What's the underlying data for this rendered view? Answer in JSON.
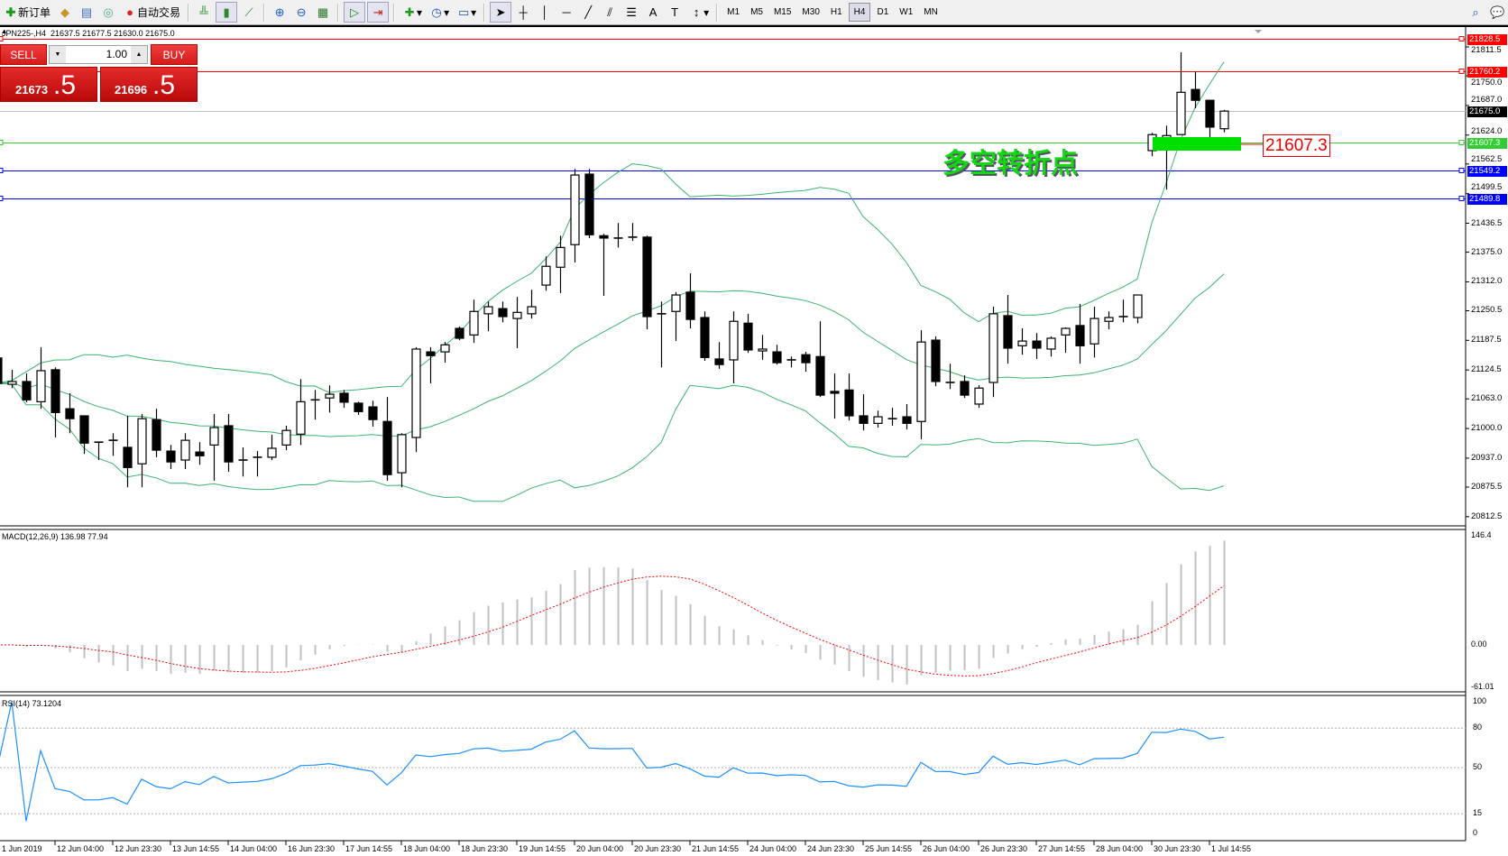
{
  "toolbar": {
    "new_order": "新订单",
    "auto_trading": "自动交易",
    "timeframes": [
      "M1",
      "M5",
      "M15",
      "M30",
      "H1",
      "H4",
      "D1",
      "W1",
      "MN"
    ],
    "active_timeframe": "H4"
  },
  "chart": {
    "symbol_period": "JPN225-,H4",
    "ohlc": "21637.5 21677.5 21630.0 21675.0"
  },
  "one_click": {
    "sell_label": "SELL",
    "buy_label": "BUY",
    "lot": "1.00",
    "sell_price_main": "21673",
    "sell_price_frac": ".5",
    "buy_price_main": "21696",
    "buy_price_frac": ".5"
  },
  "price_axis": {
    "ticks": [
      "21811.5",
      "21750.0",
      "21687.0",
      "21624.0",
      "21562.5",
      "21499.5",
      "21436.5",
      "21375.0",
      "21312.0",
      "21250.5",
      "21187.5",
      "21124.5",
      "21063.0",
      "21000.0",
      "20937.0",
      "20875.5",
      "20812.5"
    ]
  },
  "lines": [
    {
      "label": "21828.5",
      "price": 21828.5,
      "color": "#ff0000"
    },
    {
      "label": "21760.2",
      "price": 21760.2,
      "color": "#ff0000"
    },
    {
      "label": "21675.0",
      "price": 21675.0,
      "color": "#000000",
      "line_color": "#c0c0c0"
    },
    {
      "label": "21607.3",
      "price": 21607.3,
      "color": "#32cd32"
    },
    {
      "label": "21549.2",
      "price": 21549.2,
      "color": "#0000ff"
    },
    {
      "label": "21489.8",
      "price": 21489.8,
      "color": "#0000ff"
    }
  ],
  "annotation": {
    "text": "多空转折点",
    "price_label": "21607.3",
    "zone_color": "#00e000"
  },
  "macd": {
    "label": "MACD(12,26,9) 136.98 77.94",
    "scale_top": "146.4",
    "scale_zero": "0.00",
    "scale_bottom": "-61.01"
  },
  "rsi": {
    "label": "RSI(14) 73.1204",
    "levels": [
      "100",
      "80",
      "50",
      "15",
      "0"
    ]
  },
  "time_axis": [
    "1 Jun 2019",
    "12 Jun 04:00",
    "12 Jun 23:30",
    "13 Jun 14:55",
    "14 Jun 04:00",
    "16 Jun 23:30",
    "17 Jun 14:55",
    "18 Jun 04:00",
    "18 Jun 23:30",
    "19 Jun 14:55",
    "20 Jun 04:00",
    "20 Jun 23:30",
    "21 Jun 14:55",
    "24 Jun 04:00",
    "24 Jun 23:30",
    "25 Jun 14:55",
    "26 Jun 04:00",
    "26 Jun 23:30",
    "27 Jun 14:55",
    "28 Jun 04:00",
    "30 Jun 23:30",
    "1 Jul 14:55"
  ],
  "chart_data": {
    "type": "candlestick",
    "symbol": "JPN225-",
    "timeframe": "H4",
    "ylim": [
      20812.5,
      21811.5
    ],
    "indicators": [
      "Bollinger Bands",
      "MACD(12,26,9)",
      "RSI(14)"
    ],
    "band_color": "#3cb371",
    "ohlc": [
      [
        21150,
        21173,
        21086,
        21096
      ],
      [
        21094,
        21125,
        21086,
        21100
      ],
      [
        21100,
        21117,
        21056,
        21061
      ],
      [
        21057,
        21173,
        21042,
        21123
      ],
      [
        21125,
        21130,
        20981,
        21034
      ],
      [
        21042,
        21075,
        20990,
        21021
      ],
      [
        21027,
        21027,
        20946,
        20969
      ],
      [
        20971,
        20971,
        20933,
        20969
      ],
      [
        20975,
        20990,
        20942,
        20975
      ],
      [
        20960,
        21027,
        20875,
        20917
      ],
      [
        20925,
        21031,
        20875,
        21021
      ],
      [
        21019,
        21042,
        20939,
        20954
      ],
      [
        20952,
        20965,
        20914,
        20929
      ],
      [
        20933,
        20990,
        20914,
        20975
      ],
      [
        20950,
        20971,
        20923,
        20942
      ],
      [
        20965,
        21031,
        20889,
        21002
      ],
      [
        21006,
        21031,
        20908,
        20929
      ],
      [
        20933,
        20960,
        20898,
        20935
      ],
      [
        20939,
        20952,
        20898,
        20940
      ],
      [
        20939,
        20987,
        20933,
        20958
      ],
      [
        20965,
        21006,
        20954,
        20996
      ],
      [
        20988,
        21105,
        20965,
        21057
      ],
      [
        21061,
        21082,
        21019,
        21062
      ],
      [
        21065,
        21092,
        21034,
        21073
      ],
      [
        21075,
        21082,
        21044,
        21056
      ],
      [
        21054,
        21057,
        21029,
        21036
      ],
      [
        21046,
        21059,
        21004,
        21019
      ],
      [
        21015,
        21067,
        20889,
        20902
      ],
      [
        20906,
        20990,
        20875,
        20987
      ],
      [
        20981,
        21173,
        20950,
        21169
      ],
      [
        21163,
        21173,
        21096,
        21155
      ],
      [
        21163,
        21184,
        21140,
        21178
      ],
      [
        21213,
        21217,
        21188,
        21192
      ],
      [
        21199,
        21274,
        21182,
        21249
      ],
      [
        21244,
        21270,
        21207,
        21259
      ],
      [
        21255,
        21270,
        21226,
        21238
      ],
      [
        21234,
        21280,
        21171,
        21247
      ],
      [
        21244,
        21295,
        21234,
        21259
      ],
      [
        21305,
        21366,
        21293,
        21345
      ],
      [
        21343,
        21410,
        21288,
        21385
      ],
      [
        21391,
        21552,
        21353,
        21539
      ],
      [
        21541,
        21552,
        21405,
        21412
      ],
      [
        21410,
        21414,
        21282,
        21405
      ],
      [
        21405,
        21437,
        21385,
        21406
      ],
      [
        21407,
        21437,
        21399,
        21410
      ],
      [
        21407,
        21410,
        21211,
        21238
      ],
      [
        21244,
        21270,
        21130,
        21245
      ],
      [
        21249,
        21290,
        21186,
        21284
      ],
      [
        21290,
        21330,
        21213,
        21232
      ],
      [
        21236,
        21249,
        21144,
        21151
      ],
      [
        21148,
        21184,
        21127,
        21136
      ],
      [
        21146,
        21249,
        21096,
        21228
      ],
      [
        21224,
        21244,
        21161,
        21167
      ],
      [
        21165,
        21199,
        21146,
        21169
      ],
      [
        21163,
        21178,
        21136,
        21140
      ],
      [
        21146,
        21153,
        21130,
        21147
      ],
      [
        21157,
        21163,
        21121,
        21140
      ],
      [
        21153,
        21228,
        21067,
        21071
      ],
      [
        21079,
        21117,
        21021,
        21075
      ],
      [
        21082,
        21117,
        21017,
        21027
      ],
      [
        21027,
        21073,
        20996,
        21011
      ],
      [
        21011,
        21038,
        21002,
        21025
      ],
      [
        21021,
        21044,
        21006,
        21022
      ],
      [
        21025,
        21052,
        20998,
        21011
      ],
      [
        21015,
        21209,
        20977,
        21184
      ],
      [
        21188,
        21196,
        21090,
        21100
      ],
      [
        21098,
        21138,
        21084,
        21099
      ],
      [
        21100,
        21113,
        21065,
        21071
      ],
      [
        21052,
        21092,
        21044,
        21086
      ],
      [
        21098,
        21259,
        21067,
        21244
      ],
      [
        21240,
        21284,
        21138,
        21171
      ],
      [
        21176,
        21213,
        21157,
        21186
      ],
      [
        21186,
        21203,
        21148,
        21171
      ],
      [
        21169,
        21196,
        21153,
        21192
      ],
      [
        21199,
        21215,
        21161,
        21213
      ],
      [
        21219,
        21265,
        21138,
        21176
      ],
      [
        21180,
        21259,
        21151,
        21234
      ],
      [
        21228,
        21249,
        21211,
        21236
      ],
      [
        21238,
        21274,
        21226,
        21239
      ],
      [
        21236,
        21284,
        21224,
        21284
      ],
      [
        21591,
        21629,
        21579,
        21625
      ],
      [
        21614,
        21644,
        21508,
        21623
      ],
      [
        21625,
        21800,
        21625,
        21715
      ],
      [
        21721,
        21759,
        21681,
        21698
      ],
      [
        21698,
        21698,
        21619,
        21641
      ],
      [
        21637.5,
        21677.5,
        21630.0,
        21675.0
      ]
    ]
  }
}
